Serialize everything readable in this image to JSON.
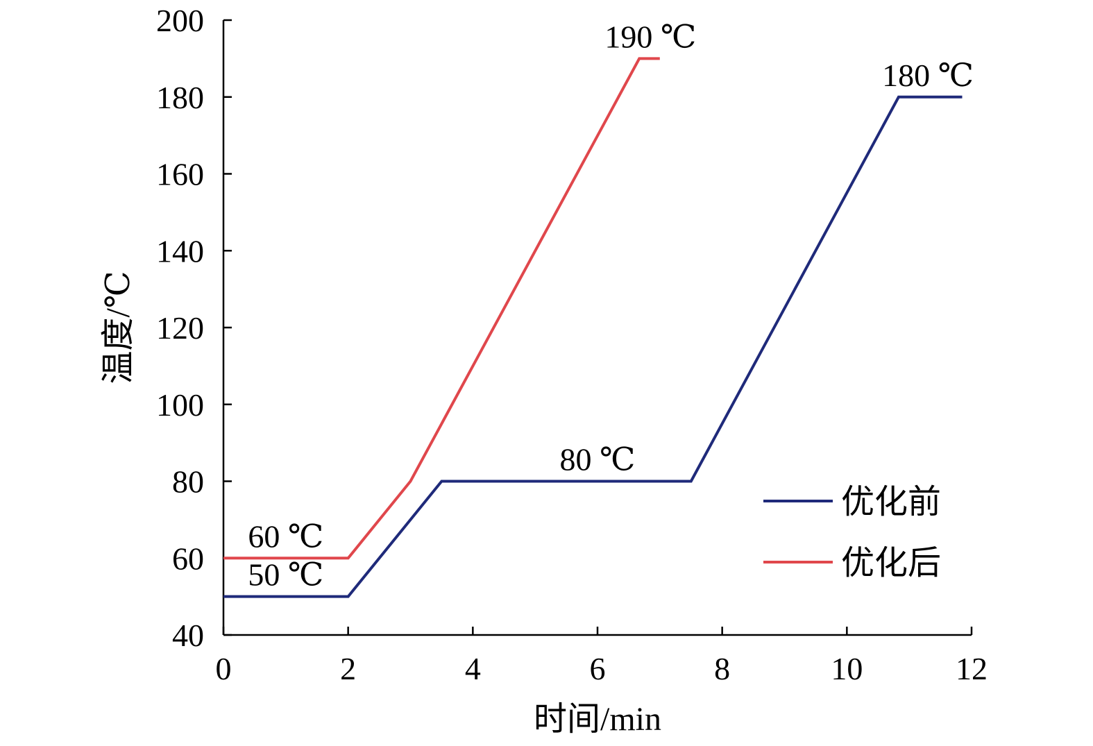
{
  "chart_data": {
    "type": "line",
    "xlabel": "时间/min",
    "ylabel": "温度/℃",
    "xlim": [
      0,
      12
    ],
    "ylim": [
      40,
      200
    ],
    "xticks": [
      0,
      2,
      4,
      6,
      8,
      10,
      12
    ],
    "yticks": [
      40,
      60,
      80,
      100,
      120,
      140,
      160,
      180,
      200
    ],
    "grid": false,
    "legend_position": "bottom-right",
    "series": [
      {
        "name": "优化前",
        "color": "#1f2a7a",
        "x": [
          0,
          2,
          3.5,
          7.5,
          10.83,
          11.85
        ],
        "y": [
          50,
          50,
          80,
          80,
          180,
          180
        ]
      },
      {
        "name": "优化后",
        "color": "#e0474c",
        "x": [
          0,
          2,
          3,
          6.67,
          7.0
        ],
        "y": [
          60,
          60,
          80,
          190,
          190
        ]
      }
    ],
    "annotations": [
      {
        "text": "60 ℃",
        "x": 1.0,
        "y": 60
      },
      {
        "text": "50 ℃",
        "x": 1.0,
        "y": 50
      },
      {
        "text": "80 ℃",
        "x": 6.0,
        "y": 80
      },
      {
        "text": "190 ℃",
        "x": 6.85,
        "y": 190
      },
      {
        "text": "180 ℃",
        "x": 11.3,
        "y": 180
      }
    ]
  }
}
